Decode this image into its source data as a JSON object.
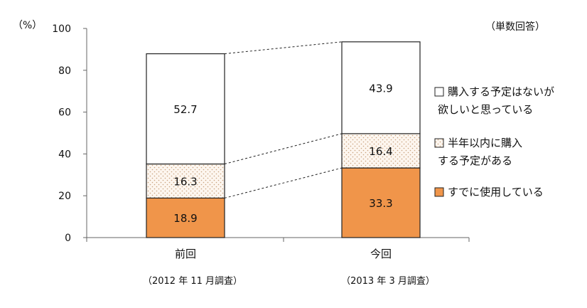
{
  "chart_data": {
    "type": "bar",
    "stacked": true,
    "y_unit": "（%）",
    "note": "（単数回答）",
    "ylim": [
      0,
      100
    ],
    "yticks": [
      0,
      20,
      40,
      60,
      80,
      100
    ],
    "categories": [
      "前回",
      "今回"
    ],
    "category_subtitles": [
      "（2012 年 11 月調査）",
      "（2013 年 3 月調査）"
    ],
    "series": [
      {
        "name": "すでに使用している",
        "values": [
          18.9,
          33.3
        ],
        "labels": [
          "18.9",
          "33.3"
        ],
        "fill": "#f0954a",
        "pattern": "solid"
      },
      {
        "name": "半年以内に購入する予定がある",
        "legend_lines": [
          "半年以内に購入",
          "する予定がある"
        ],
        "values": [
          16.3,
          16.4
        ],
        "labels": [
          "16.3",
          "16.4"
        ],
        "fill": "#fdf6ef",
        "pattern": "dots"
      },
      {
        "name": "購入する予定はないが欲しいと思っている",
        "legend_lines": [
          "購入する予定はないが",
          "欲しいと思っている"
        ],
        "values": [
          52.7,
          43.9
        ],
        "labels": [
          "52.7",
          "43.9"
        ],
        "fill": "#ffffff",
        "pattern": "none"
      }
    ],
    "connector_lines": "dashed",
    "grid": false,
    "legend_position": "right"
  }
}
